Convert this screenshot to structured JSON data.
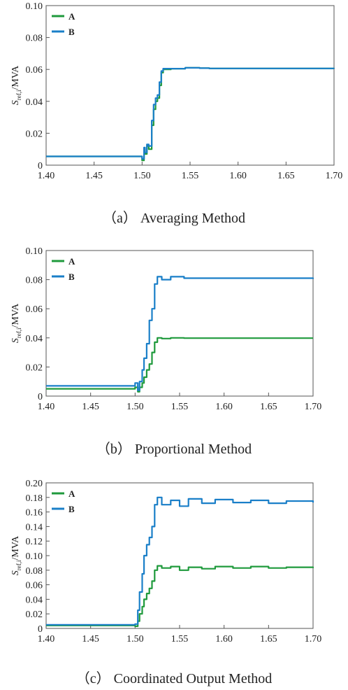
{
  "chart_data": [
    {
      "type": "line",
      "caption": "（a）  Averaging Method",
      "ylabel": "S_ref,i/MVA",
      "ylabel_main": "S",
      "ylabel_sub": "ref,i",
      "ylabel_unit": "/MVA",
      "xlim": [
        1.4,
        1.7
      ],
      "ylim": [
        0,
        0.1
      ],
      "xticks": [
        "1.40",
        "1.45",
        "1.50",
        "1.55",
        "1.60",
        "1.65",
        "1.70"
      ],
      "yticks": [
        "0",
        "0.02",
        "0.04",
        "0.06",
        "0.08",
        "0.10"
      ],
      "legend": [
        "A",
        "B"
      ],
      "legend_position": "top-left",
      "series": [
        {
          "name": "A",
          "color": "#1f9a3c",
          "x": [
            1.4,
            1.499,
            1.5,
            1.502,
            1.503,
            1.505,
            1.507,
            1.51,
            1.512,
            1.514,
            1.516,
            1.518,
            1.52,
            1.522,
            1.53,
            1.545,
            1.56,
            1.57,
            1.7
          ],
          "y": [
            0.0055,
            0.0055,
            0.003,
            0.01,
            0.007,
            0.012,
            0.01,
            0.025,
            0.035,
            0.04,
            0.042,
            0.05,
            0.058,
            0.06,
            0.0605,
            0.061,
            0.0608,
            0.0606,
            0.0605
          ]
        },
        {
          "name": "B",
          "color": "#1a7fc8",
          "x": [
            1.4,
            1.499,
            1.5,
            1.502,
            1.503,
            1.505,
            1.507,
            1.51,
            1.512,
            1.514,
            1.516,
            1.518,
            1.52,
            1.522,
            1.53,
            1.545,
            1.56,
            1.57,
            1.7
          ],
          "y": [
            0.0055,
            0.0055,
            0.004,
            0.011,
            0.008,
            0.013,
            0.012,
            0.028,
            0.038,
            0.042,
            0.044,
            0.052,
            0.059,
            0.0605,
            0.0605,
            0.061,
            0.0608,
            0.0606,
            0.0605
          ]
        }
      ]
    },
    {
      "type": "line",
      "caption": "（b）  Proportional Method",
      "ylabel": "S_ref,i/MVA",
      "ylabel_main": "S",
      "ylabel_sub": "ref,i",
      "ylabel_unit": "/MVA",
      "xlim": [
        1.4,
        1.7
      ],
      "ylim": [
        0,
        0.1
      ],
      "xticks": [
        "1.40",
        "1.45",
        "1.50",
        "1.55",
        "1.60",
        "1.65",
        "1.70"
      ],
      "yticks": [
        "0",
        "0.02",
        "0.04",
        "0.06",
        "0.08",
        "0.10"
      ],
      "legend": [
        "A",
        "B"
      ],
      "legend_position": "top-left",
      "series": [
        {
          "name": "A",
          "color": "#1f9a3c",
          "x": [
            1.4,
            1.499,
            1.5,
            1.503,
            1.505,
            1.508,
            1.51,
            1.513,
            1.516,
            1.519,
            1.522,
            1.525,
            1.53,
            1.54,
            1.555,
            1.7
          ],
          "y": [
            0.005,
            0.005,
            0.006,
            0.003,
            0.006,
            0.009,
            0.013,
            0.018,
            0.022,
            0.03,
            0.037,
            0.04,
            0.0395,
            0.04,
            0.0398,
            0.0398
          ]
        },
        {
          "name": "B",
          "color": "#1a7fc8",
          "x": [
            1.4,
            1.499,
            1.5,
            1.503,
            1.505,
            1.508,
            1.51,
            1.513,
            1.516,
            1.519,
            1.522,
            1.525,
            1.53,
            1.54,
            1.555,
            1.7
          ],
          "y": [
            0.007,
            0.007,
            0.009,
            0.004,
            0.01,
            0.018,
            0.026,
            0.036,
            0.052,
            0.06,
            0.077,
            0.082,
            0.08,
            0.082,
            0.081,
            0.0805
          ]
        }
      ]
    },
    {
      "type": "line",
      "caption": "（c）  Coordinated Output Method",
      "ylabel": "S_ref,i/MVA",
      "ylabel_main": "S",
      "ylabel_sub": "ref,i",
      "ylabel_unit": "/MVA",
      "xlim": [
        1.4,
        1.7
      ],
      "ylim": [
        0,
        0.2
      ],
      "xticks": [
        "1.40",
        "1.45",
        "1.50",
        "1.55",
        "1.60",
        "1.65",
        "1.70"
      ],
      "yticks": [
        "0",
        "0.02",
        "0.04",
        "0.06",
        "0.08",
        "0.10",
        "0.12",
        "0.14",
        "0.16",
        "0.18",
        "0.20"
      ],
      "legend": [
        "A",
        "B"
      ],
      "legend_position": "top-left",
      "series": [
        {
          "name": "A",
          "color": "#1f9a3c",
          "x": [
            1.4,
            1.499,
            1.5,
            1.503,
            1.505,
            1.508,
            1.51,
            1.513,
            1.516,
            1.519,
            1.522,
            1.525,
            1.53,
            1.54,
            1.55,
            1.56,
            1.575,
            1.59,
            1.61,
            1.63,
            1.65,
            1.67,
            1.7
          ],
          "y": [
            0.004,
            0.004,
            0.003,
            0.01,
            0.02,
            0.03,
            0.04,
            0.048,
            0.055,
            0.065,
            0.08,
            0.086,
            0.083,
            0.085,
            0.08,
            0.084,
            0.082,
            0.085,
            0.083,
            0.085,
            0.083,
            0.084,
            0.083
          ]
        },
        {
          "name": "B",
          "color": "#1a7fc8",
          "x": [
            1.4,
            1.499,
            1.5,
            1.503,
            1.505,
            1.508,
            1.51,
            1.513,
            1.516,
            1.519,
            1.522,
            1.525,
            1.53,
            1.54,
            1.55,
            1.56,
            1.575,
            1.59,
            1.61,
            1.63,
            1.65,
            1.67,
            1.7
          ],
          "y": [
            0.005,
            0.005,
            0.006,
            0.025,
            0.05,
            0.075,
            0.1,
            0.115,
            0.125,
            0.14,
            0.17,
            0.18,
            0.17,
            0.176,
            0.168,
            0.178,
            0.172,
            0.177,
            0.173,
            0.176,
            0.172,
            0.175,
            0.173
          ]
        }
      ]
    }
  ]
}
